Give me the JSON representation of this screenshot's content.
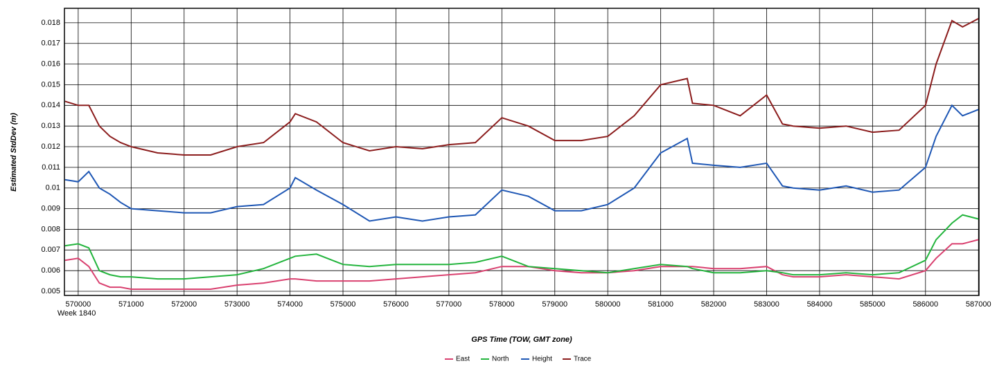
{
  "chart_data": {
    "type": "line",
    "x_label": "GPS Time (TOW, GMT zone)",
    "y_label": "Estimated StdDev (m)",
    "annotation": "Week 1840",
    "x": [
      569750,
      570000,
      570200,
      570400,
      570600,
      570800,
      571000,
      571500,
      572000,
      572500,
      573000,
      573500,
      574000,
      574100,
      574500,
      575000,
      575500,
      576000,
      576500,
      577000,
      577500,
      578000,
      578500,
      579000,
      579500,
      580000,
      580500,
      581000,
      581500,
      581600,
      582000,
      582500,
      583000,
      583300,
      583500,
      584000,
      584500,
      585000,
      585500,
      586000,
      586200,
      586500,
      586700,
      587000
    ],
    "series": [
      {
        "name": "East",
        "color": "#d9406f",
        "values": [
          0.0065,
          0.0066,
          0.0062,
          0.0054,
          0.0052,
          0.0052,
          0.0051,
          0.0051,
          0.0051,
          0.0051,
          0.0053,
          0.0054,
          0.0056,
          0.0056,
          0.0055,
          0.0055,
          0.0055,
          0.0056,
          0.0057,
          0.0058,
          0.0059,
          0.0062,
          0.0062,
          0.006,
          0.0059,
          0.0059,
          0.006,
          0.0062,
          0.0062,
          0.0062,
          0.0061,
          0.0061,
          0.0062,
          0.0058,
          0.0057,
          0.0057,
          0.0058,
          0.0057,
          0.0056,
          0.006,
          0.0066,
          0.0073,
          0.0073,
          0.0075
        ]
      },
      {
        "name": "North",
        "color": "#22b43c",
        "values": [
          0.0072,
          0.0073,
          0.0071,
          0.006,
          0.0058,
          0.0057,
          0.0057,
          0.0056,
          0.0056,
          0.0057,
          0.0058,
          0.0061,
          0.0066,
          0.0067,
          0.0068,
          0.0063,
          0.0062,
          0.0063,
          0.0063,
          0.0063,
          0.0064,
          0.0067,
          0.0062,
          0.0061,
          0.006,
          0.0059,
          0.0061,
          0.0063,
          0.0062,
          0.0061,
          0.0059,
          0.0059,
          0.006,
          0.0059,
          0.0058,
          0.0058,
          0.0059,
          0.0058,
          0.0059,
          0.0065,
          0.0075,
          0.0083,
          0.0087,
          0.0085
        ]
      },
      {
        "name": "Height",
        "color": "#1d56b4",
        "values": [
          0.0104,
          0.0103,
          0.0108,
          0.01,
          0.0097,
          0.0093,
          0.009,
          0.0089,
          0.0088,
          0.0088,
          0.0091,
          0.0092,
          0.01,
          0.0105,
          0.0099,
          0.0092,
          0.0084,
          0.0086,
          0.0084,
          0.0086,
          0.0087,
          0.0099,
          0.0096,
          0.0089,
          0.0089,
          0.0092,
          0.01,
          0.0117,
          0.0124,
          0.0112,
          0.0111,
          0.011,
          0.0112,
          0.0101,
          0.01,
          0.0099,
          0.0101,
          0.0098,
          0.0099,
          0.011,
          0.0125,
          0.014,
          0.0135,
          0.0138
        ]
      },
      {
        "name": "Trace",
        "color": "#8b1c1c",
        "values": [
          0.0142,
          0.014,
          0.014,
          0.013,
          0.0125,
          0.0122,
          0.012,
          0.0117,
          0.0116,
          0.0116,
          0.012,
          0.0122,
          0.0132,
          0.0136,
          0.0132,
          0.0122,
          0.0118,
          0.012,
          0.0119,
          0.0121,
          0.0122,
          0.0134,
          0.013,
          0.0123,
          0.0123,
          0.0125,
          0.0135,
          0.015,
          0.0153,
          0.0141,
          0.014,
          0.0135,
          0.0145,
          0.0131,
          0.013,
          0.0129,
          0.013,
          0.0127,
          0.0128,
          0.014,
          0.016,
          0.0181,
          0.0178,
          0.0182
        ]
      }
    ],
    "xlim": [
      569740,
      587010
    ],
    "xticks": [
      570000,
      571000,
      572000,
      573000,
      574000,
      575000,
      576000,
      577000,
      578000,
      579000,
      580000,
      581000,
      582000,
      583000,
      584000,
      585000,
      586000,
      587000
    ],
    "ylim": [
      0.0048,
      0.0187
    ],
    "yticks": [
      0.005,
      0.006,
      0.007,
      0.008,
      0.009,
      0.01,
      0.011,
      0.012,
      0.013,
      0.014,
      0.015,
      0.016,
      0.017,
      0.018
    ],
    "grid": true,
    "legend": "bottom"
  }
}
